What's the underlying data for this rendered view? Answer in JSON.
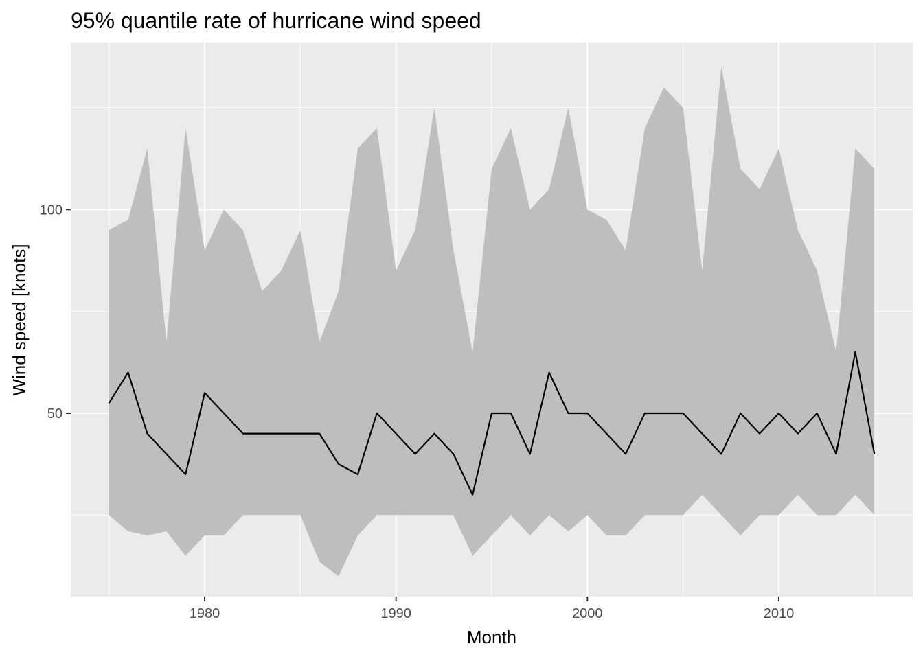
{
  "chart_data": {
    "type": "area",
    "title": "95% quantile rate of hurricane wind speed",
    "xlabel": "Month",
    "ylabel": "Wind speed [knots]",
    "xlim": [
      1973,
      2017
    ],
    "ylim": [
      5,
      141
    ],
    "x_ticks": [
      1980,
      1990,
      2000,
      2010
    ],
    "y_ticks": [
      50,
      100
    ],
    "grid": true,
    "legend": "none",
    "colors": {
      "panel": "#ebebeb",
      "grid": "#ffffff",
      "ribbon": "#bebebe",
      "line": "#000000",
      "tick": "#333333"
    },
    "x": [
      1975,
      1976,
      1977,
      1978,
      1979,
      1980,
      1981,
      1982,
      1983,
      1984,
      1985,
      1986,
      1987,
      1988,
      1989,
      1990,
      1991,
      1992,
      1993,
      1994,
      1995,
      1996,
      1997,
      1998,
      1999,
      2000,
      2001,
      2002,
      2003,
      2004,
      2005,
      2006,
      2007,
      2008,
      2009,
      2010,
      2011,
      2012,
      2013,
      2014,
      2015
    ],
    "series": [
      {
        "values": [
          52.5,
          60,
          45,
          40,
          35,
          55,
          50,
          45,
          45,
          45,
          45,
          45,
          37.5,
          35,
          50,
          45,
          40,
          45,
          40,
          30,
          50,
          50,
          40,
          60,
          50,
          50,
          45,
          40,
          50,
          50,
          50,
          45,
          40,
          50,
          45,
          50,
          45,
          50,
          40,
          65,
          40
        ]
      }
    ],
    "ribbon": {
      "upper": [
        95,
        97.5,
        115,
        67.5,
        120,
        90,
        100,
        95,
        80,
        85,
        95,
        67.5,
        80,
        115,
        120,
        85,
        95,
        125,
        90,
        65,
        110,
        120,
        100,
        105,
        125,
        100,
        97.5,
        90,
        120,
        130,
        125,
        85,
        135,
        110,
        105,
        115,
        95,
        85,
        65,
        115,
        110
      ],
      "lower": [
        25,
        21,
        20,
        21,
        15,
        20,
        20,
        25,
        25,
        25,
        25,
        13.5,
        10,
        20,
        25,
        25,
        25,
        25,
        25,
        15,
        20,
        25,
        20,
        25,
        21,
        25,
        20,
        20,
        25,
        25,
        25,
        30,
        25,
        20,
        25,
        25,
        30,
        25,
        25,
        30,
        25
      ]
    }
  }
}
